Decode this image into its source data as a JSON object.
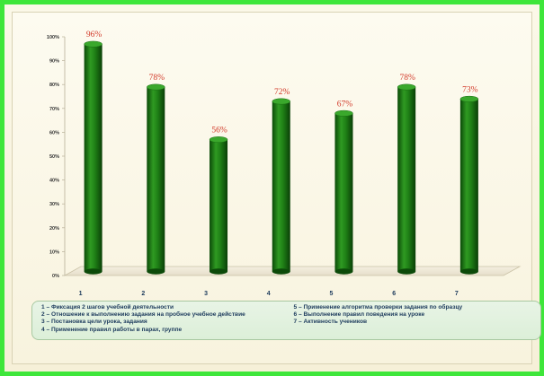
{
  "chart_data": {
    "type": "bar",
    "categories": [
      "1",
      "2",
      "3",
      "4",
      "5",
      "6",
      "7"
    ],
    "values": [
      96,
      78,
      56,
      72,
      67,
      78,
      73
    ],
    "data_labels": [
      "96%",
      "78%",
      "56%",
      "72%",
      "67%",
      "78%",
      "73%"
    ],
    "ylim": [
      0,
      100
    ],
    "y_ticks": [
      "0%",
      "10%",
      "20%",
      "30%",
      "40%",
      "50%",
      "60%",
      "70%",
      "80%",
      "90%",
      "100%"
    ],
    "bar_color": "#1a7a12",
    "label_color": "#d23a2a",
    "grid": false,
    "legend_placement": "bottom"
  },
  "legend": {
    "left": [
      "1 – Фиксация 2 шагов учебной деятельности",
      "2 – Отношение к выполнению задания на пробное учебное действие",
      "3 – Постановка цели урока, задания",
      "4 – Применение правил работы в парах, группе"
    ],
    "right": [
      "5 – Применение алгоритма проверки задания по образцу",
      "6 – Выполнение правил поведения на уроке",
      "7 – Активность учеников"
    ]
  }
}
